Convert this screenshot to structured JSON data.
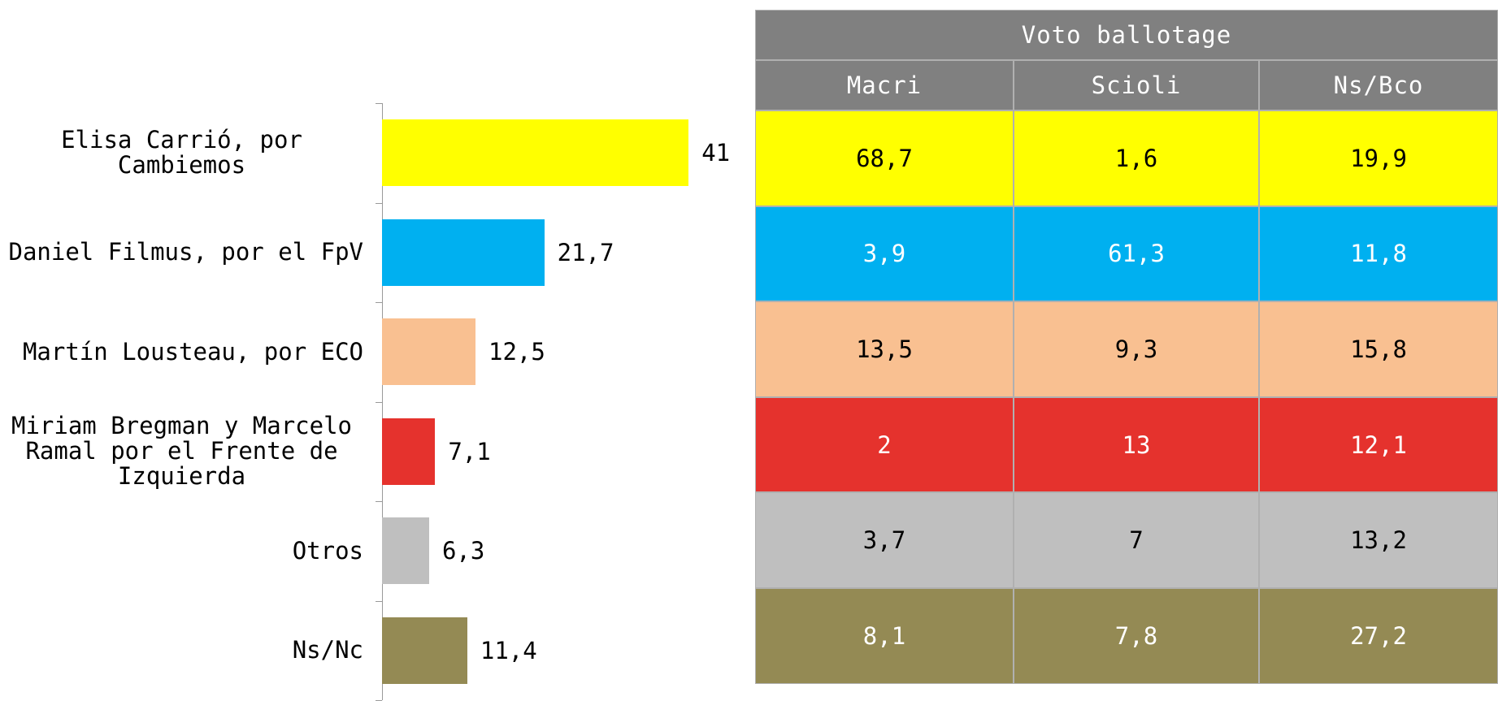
{
  "chart_data": {
    "type": "bar",
    "orientation": "horizontal",
    "categories": [
      "Elisa Carrió, por Cambiemos",
      "Daniel Filmus, por el FpV",
      "Martín Lousteau, por ECO",
      "Miriam Bregman y Marcelo Ramal por el Frente de Izquierda",
      "Otros",
      "Ns/Nc"
    ],
    "values": [
      41,
      21.7,
      12.5,
      7.1,
      6.3,
      11.4
    ],
    "value_labels": [
      "41",
      "21,7",
      "12,5",
      "7,1",
      "6,3",
      "11,4"
    ],
    "colors": [
      "#ffff00",
      "#00b0f0",
      "#f9c091",
      "#e5322d",
      "#bfbfbf",
      "#948a54"
    ],
    "xlim": [
      0,
      50
    ]
  },
  "table": {
    "title": "Voto ballotage",
    "columns": [
      "Macri",
      "Scioli",
      "Ns/Bco"
    ],
    "rows": [
      [
        "68,7",
        "1,6",
        "19,9"
      ],
      [
        "3,9",
        "61,3",
        "11,8"
      ],
      [
        "13,5",
        "9,3",
        "15,8"
      ],
      [
        "2",
        "13",
        "12,1"
      ],
      [
        "3,7",
        "7",
        "13,2"
      ],
      [
        "8,1",
        "7,8",
        "27,2"
      ]
    ]
  }
}
